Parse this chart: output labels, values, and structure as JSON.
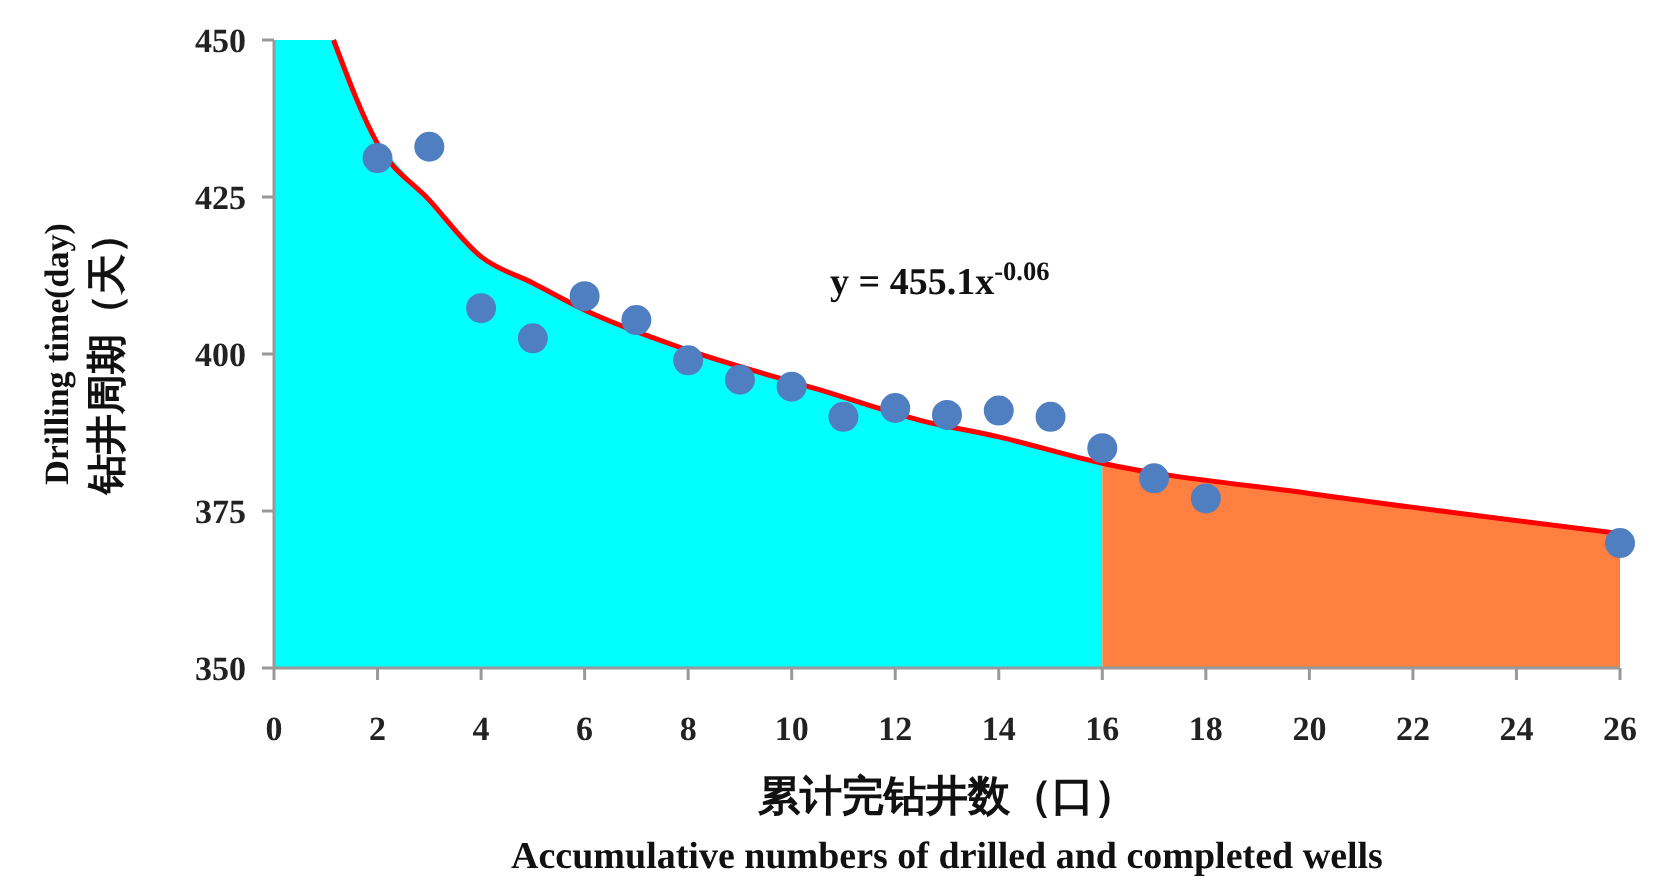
{
  "chart_data": {
    "type": "scatter",
    "xlabel": "累计完钻井数（口）\nAccumulative numbers of drilled and completed wells",
    "ylabel": "Drilling time(day)\n钻井周期（天）",
    "annotations": [
      "y = 455.1x$^{-0.06}$"
    ],
    "xlim": [
      0,
      26
    ],
    "xticks": [
      0,
      2,
      4,
      6,
      8,
      10,
      12,
      14,
      16,
      18,
      20,
      22,
      24,
      26
    ],
    "ylim": [
      350,
      450
    ],
    "yticks": [
      350,
      375,
      400,
      425,
      450
    ],
    "grid": false,
    "series": [
      {
        "type": "area",
        "color": "#00ffff",
        "x": [
          0,
          1.15,
          2,
          3,
          4,
          5,
          6,
          8,
          10,
          12,
          14,
          16
        ],
        "values": [
          450,
          450,
          433.5,
          424.5,
          415.5,
          411.3,
          407,
          400.6,
          395.9,
          390.2,
          386.8,
          382.6
        ]
      },
      {
        "type": "area",
        "color": "#ff8040",
        "x": [
          16,
          20,
          26
        ],
        "values": [
          382.6,
          377.8,
          371.4
        ]
      },
      {
        "type": "line",
        "color": "#ff0000",
        "marker": "none",
        "x": [
          1.15,
          2,
          3,
          4,
          5,
          6,
          8,
          10.5,
          12.5,
          14,
          16,
          20,
          26
        ],
        "values": [
          450,
          433.5,
          424.5,
          415.5,
          411.3,
          407,
          400.6,
          394.4,
          389.4,
          386.8,
          382.6,
          377.8,
          371.4
        ]
      },
      {
        "color": "#4f7fc0",
        "marker": "circle",
        "x": [
          2,
          3,
          4,
          5,
          6,
          7,
          8,
          9,
          10,
          11,
          12,
          13,
          14,
          15,
          16,
          17,
          18,
          26
        ],
        "values": [
          431.2,
          433,
          407.3,
          402.5,
          409.2,
          405.4,
          399,
          395.9,
          394.8,
          390,
          391.4,
          390.3,
          391,
          390,
          385,
          380.2,
          377,
          369.9
        ]
      }
    ]
  }
}
